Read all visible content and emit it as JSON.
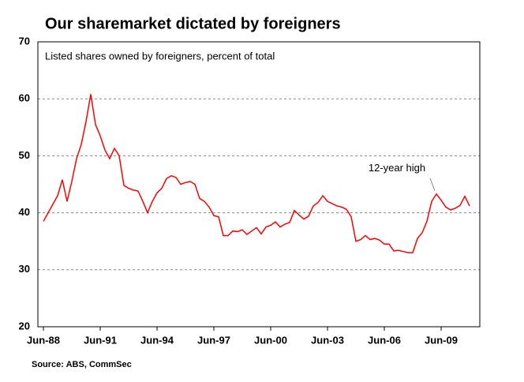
{
  "chart_data": {
    "type": "line",
    "title": "Our sharemarket dictated by foreigners",
    "subtitle": "Listed shares owned by foreigners, percent of total",
    "source": "Source: ABS, CommSec",
    "annotation": {
      "text": "12-year high",
      "index": 83
    },
    "categories": [
      "Jun-88",
      null,
      null,
      null,
      null,
      null,
      null,
      null,
      null,
      null,
      null,
      null,
      "Jun-91",
      null,
      null,
      null,
      null,
      null,
      null,
      null,
      null,
      null,
      null,
      null,
      "Jun-94",
      null,
      null,
      null,
      null,
      null,
      null,
      null,
      null,
      null,
      null,
      null,
      "Jun-97",
      null,
      null,
      null,
      null,
      null,
      null,
      null,
      null,
      null,
      null,
      null,
      "Jun-00",
      null,
      null,
      null,
      null,
      null,
      null,
      null,
      null,
      null,
      null,
      null,
      "Jun-03",
      null,
      null,
      null,
      null,
      null,
      null,
      null,
      null,
      null,
      null,
      null,
      "Jun-06",
      null,
      null,
      null,
      null,
      null,
      null,
      null,
      null,
      null,
      null,
      null,
      "Jun-09",
      null,
      null,
      null,
      null,
      null,
      null
    ],
    "series": [
      {
        "color": "#ff0000",
        "values": [
          38.5,
          40,
          41.5,
          43,
          45.8,
          42,
          45.5,
          49.5,
          52,
          56,
          60.8,
          55.5,
          53.5,
          51,
          49.5,
          51.3,
          50,
          44.8,
          44.3,
          44,
          43.8,
          42,
          40,
          42,
          43.5,
          44.3,
          46,
          46.5,
          46.2,
          45,
          45.3,
          45.5,
          45,
          42.5,
          42,
          41,
          39.5,
          39.3,
          36,
          36,
          36.8,
          36.7,
          37,
          36.2,
          36.8,
          37.4,
          36.3,
          37.5,
          37.8,
          38.4,
          37.5,
          38,
          38.3,
          40.4,
          39.6,
          38.9,
          39.4,
          41.2,
          41.8,
          43,
          42,
          41.6,
          41.2,
          41,
          40.6,
          39.3,
          35,
          35.3,
          36,
          35.3,
          35.5,
          35.2,
          34.5,
          34.5,
          33.3,
          33.4,
          33.2,
          33,
          33,
          35.5,
          36.5,
          38.5,
          42,
          43.3,
          42.2,
          41,
          40.5,
          40.8,
          41.3,
          42.9,
          41.2
        ]
      }
    ],
    "ylim": [
      20,
      70
    ],
    "yticks": [
      20,
      30,
      40,
      50,
      60,
      70
    ],
    "grid": true
  }
}
